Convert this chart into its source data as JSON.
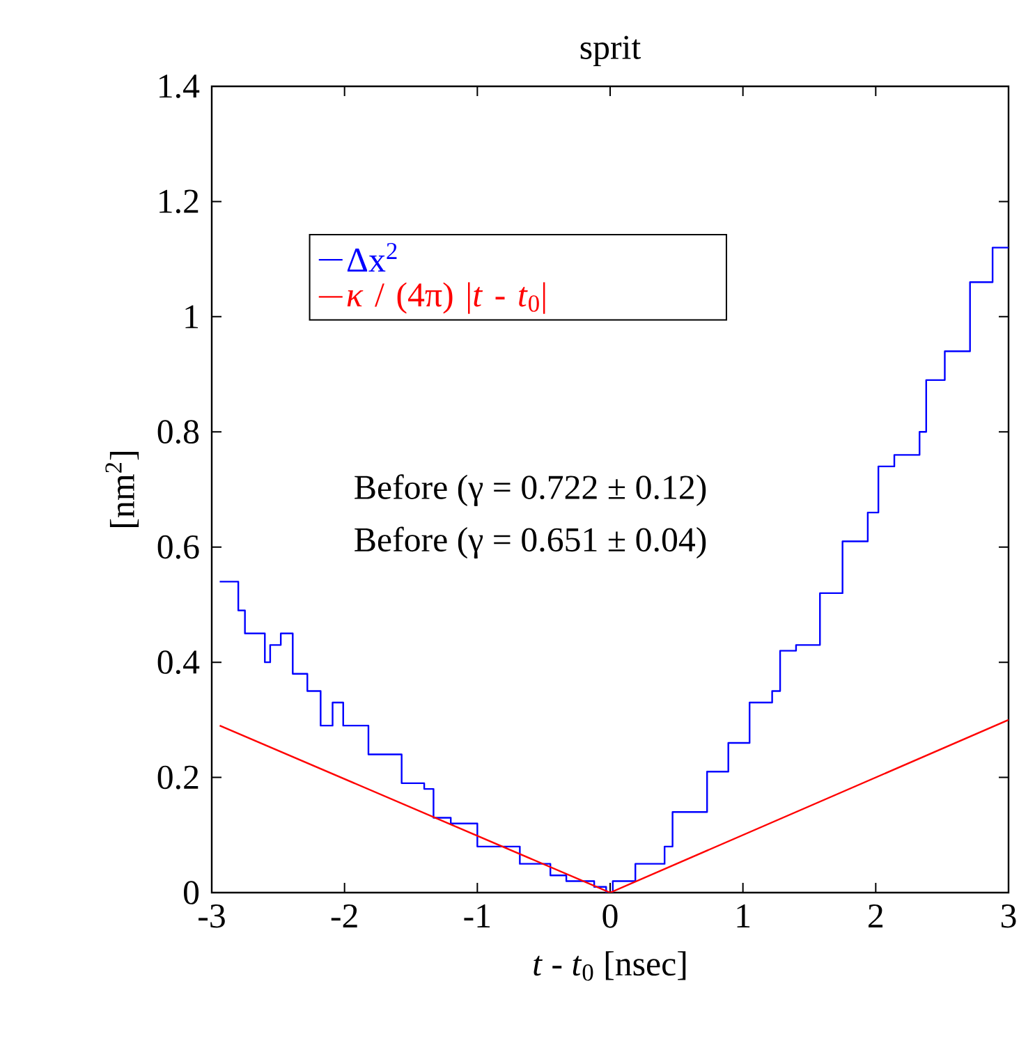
{
  "chart_data": {
    "type": "line",
    "title": "sprit",
    "xlabel": "*t* - *t*$_{0}$ [nsec]",
    "ylabel": "[nm$^{2}$]",
    "xlim": [
      -3,
      3
    ],
    "ylim": [
      0,
      1.4
    ],
    "xticks": [
      -3,
      -2,
      -1,
      0,
      1,
      2,
      3
    ],
    "yticks": [
      0,
      0.2,
      0.4,
      0.6,
      0.8,
      1,
      1.2,
      1.4
    ],
    "legend": "top left",
    "annotations": [
      "Before (γ = 0.722 ± 0.12)",
      "Before (γ = 0.651 ± 0.04)"
    ],
    "series": [
      {
        "name": "Δx$^{2}$",
        "type": "step",
        "color": "#0000ff",
        "x": [
          -2.94,
          -2.8,
          -2.75,
          -2.6,
          -2.56,
          -2.48,
          -2.39,
          -2.28,
          -2.18,
          -2.09,
          -2.01,
          -1.82,
          -1.57,
          -1.4,
          -1.33,
          -1.2,
          -1.0,
          -0.68,
          -0.45,
          -0.33,
          -0.12,
          -0.03,
          0.02,
          0.19,
          0.41,
          0.47,
          0.73,
          0.89,
          1.05,
          1.22,
          1.28,
          1.4,
          1.58,
          1.75,
          1.94,
          2.02,
          2.14,
          2.33,
          2.38,
          2.52,
          2.71,
          2.88,
          3.0
        ],
        "values": [
          0.54,
          0.49,
          0.45,
          0.4,
          0.43,
          0.45,
          0.38,
          0.35,
          0.29,
          0.33,
          0.29,
          0.24,
          0.19,
          0.18,
          0.13,
          0.12,
          0.08,
          0.05,
          0.03,
          0.02,
          0.01,
          0,
          0.02,
          0.05,
          0.08,
          0.14,
          0.21,
          0.26,
          0.33,
          0.35,
          0.42,
          0.43,
          0.52,
          0.61,
          0.66,
          0.74,
          0.76,
          0.8,
          0.89,
          0.94,
          1.06,
          1.12,
          1.12
        ]
      },
      {
        "name": "*κ* / (4π) |*t* - *t*$_{0}$|",
        "type": "line",
        "color": "#ff0000",
        "x": [
          -2.94,
          0,
          3
        ],
        "values": [
          0.29,
          0,
          0.3
        ]
      }
    ]
  }
}
